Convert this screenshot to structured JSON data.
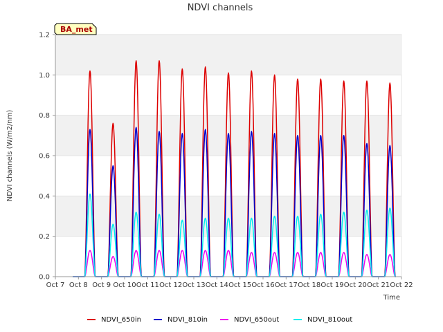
{
  "chart_data": {
    "type": "line",
    "title": "NDVI channels",
    "xlabel": "Time",
    "ylabel": "NDVI channels (W/m2/nm)",
    "badge": "BA_met",
    "ylim": [
      0,
      1.2
    ],
    "xlim": [
      "Oct 7",
      "Oct 22"
    ],
    "y_ticks": [
      "0.0",
      "0.2",
      "0.4",
      "0.6",
      "0.8",
      "1.0",
      "1.2"
    ],
    "x_ticks": [
      "Oct 7",
      "Oct 8",
      "Oct 9",
      "Oct 10",
      "Oct 11",
      "Oct 12",
      "Oct 13",
      "Oct 14",
      "Oct 15",
      "Oct 16",
      "Oct 17",
      "Oct 18",
      "Oct 19",
      "Oct 20",
      "Oct 21",
      "Oct 22"
    ],
    "grid": "horizontal bands",
    "legend_position": "bottom",
    "x": [
      "Oct 7",
      "Oct 8",
      "Oct 9",
      "Oct 10",
      "Oct 11",
      "Oct 12",
      "Oct 13",
      "Oct 14",
      "Oct 15",
      "Oct 16",
      "Oct 17",
      "Oct 18",
      "Oct 19",
      "Oct 20",
      "Oct 21"
    ],
    "series": [
      {
        "name": "NDVI_650in",
        "color": "#dd0000",
        "daily_peak": [
          1.02,
          0.76,
          1.07,
          1.07,
          1.03,
          1.04,
          1.01,
          1.02,
          1.0,
          0.98,
          0.98,
          0.97,
          0.97,
          0.96
        ]
      },
      {
        "name": "NDVI_810in",
        "color": "#0000cc",
        "daily_peak": [
          0.73,
          0.55,
          0.74,
          0.72,
          0.71,
          0.73,
          0.71,
          0.72,
          0.71,
          0.7,
          0.7,
          0.7,
          0.66,
          0.65
        ]
      },
      {
        "name": "NDVI_650out",
        "color": "#ee00ee",
        "daily_peak": [
          0.13,
          0.1,
          0.13,
          0.13,
          0.13,
          0.13,
          0.13,
          0.12,
          0.12,
          0.12,
          0.12,
          0.12,
          0.11,
          0.11
        ]
      },
      {
        "name": "NDVI_810out",
        "color": "#00eeee",
        "daily_peak": [
          0.41,
          0.26,
          0.32,
          0.31,
          0.28,
          0.29,
          0.29,
          0.29,
          0.3,
          0.3,
          0.31,
          0.32,
          0.33,
          0.34
        ]
      }
    ],
    "peak_day_offset": 0.5
  }
}
